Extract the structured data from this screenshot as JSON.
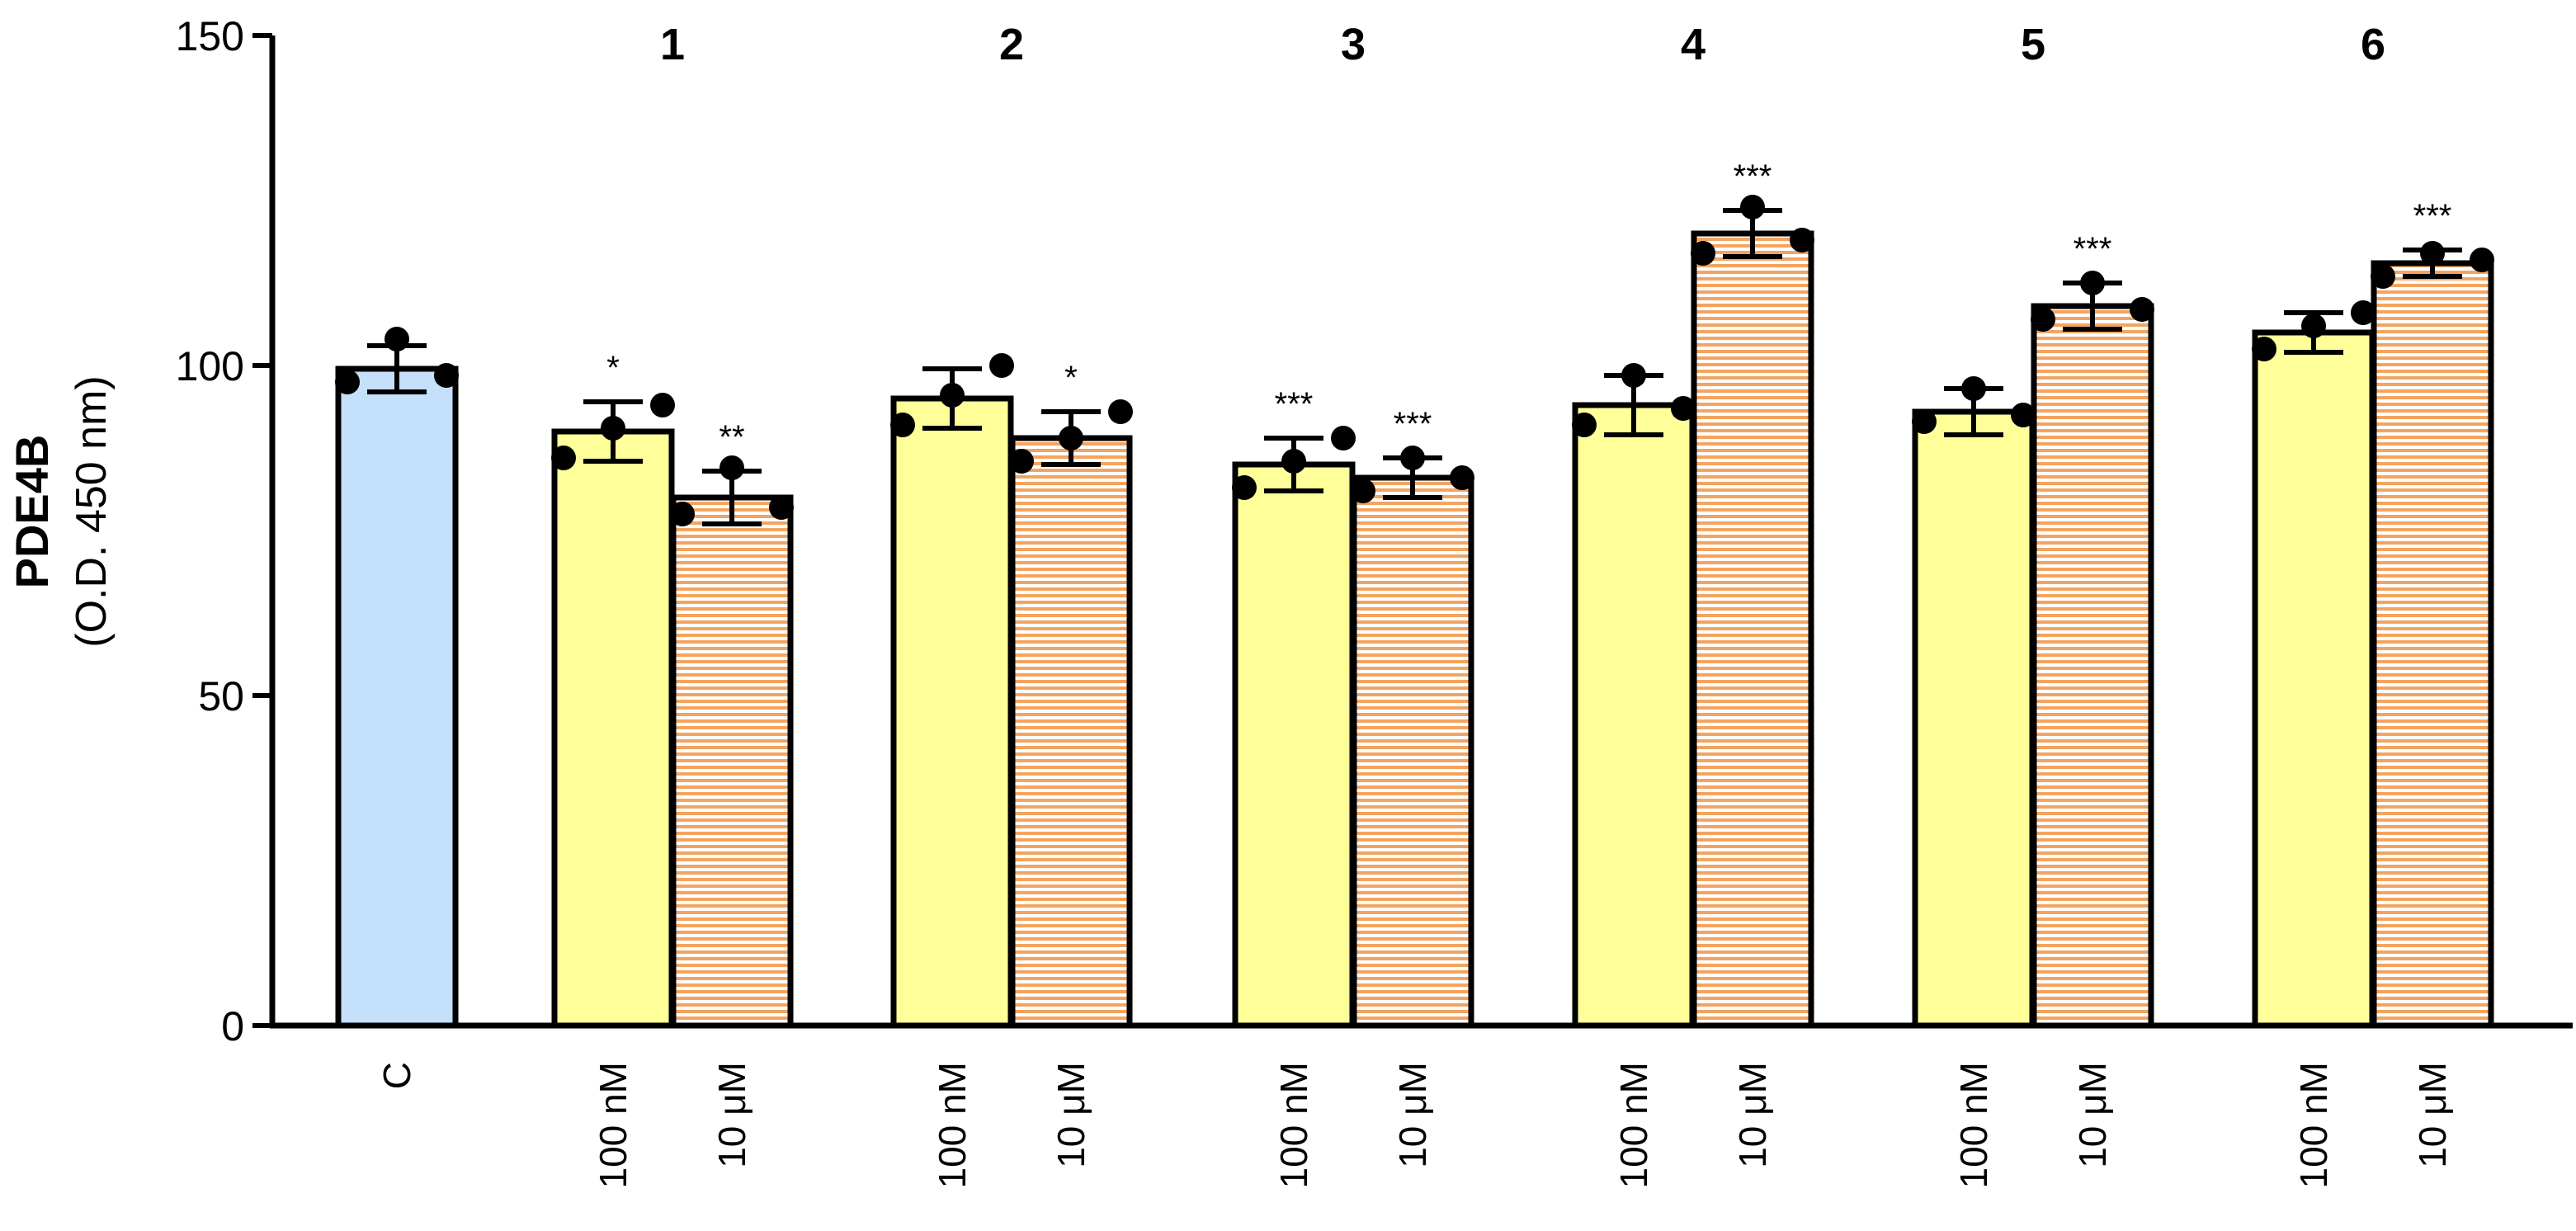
{
  "chart_data": {
    "type": "bar",
    "ylabel": "PDE4B",
    "ylabel_unit": "(O.D. 450 nm)",
    "ylim": [
      0,
      150
    ],
    "yticks": [
      0,
      50,
      100,
      150
    ],
    "grid": false,
    "colors": {
      "control": "#c5e0fb",
      "low": "#ffff99",
      "high_stripe": "#f4a460",
      "high_bg": "#ffffff",
      "outline": "#000000"
    },
    "groups": [
      {
        "label": "",
        "bars": [
          {
            "category": "C",
            "kind": "control",
            "value": 99.5,
            "error": 3.5,
            "points": [
              97.5,
              104,
              98.5
            ],
            "sig": ""
          }
        ]
      },
      {
        "label": "1",
        "bars": [
          {
            "category": "100 nM",
            "kind": "low",
            "value": 90,
            "error": 4.5,
            "points": [
              86,
              90.5,
              94
            ],
            "sig": "*"
          },
          {
            "category": "10 μM",
            "kind": "high",
            "value": 80,
            "error": 4,
            "points": [
              77.5,
              84.5,
              78.5
            ],
            "sig": "**"
          }
        ]
      },
      {
        "label": "2",
        "bars": [
          {
            "category": "100 nM",
            "kind": "low",
            "value": 95,
            "error": 4.5,
            "points": [
              91,
              95.5,
              100
            ],
            "sig": ""
          },
          {
            "category": "10 μM",
            "kind": "high",
            "value": 89,
            "error": 4,
            "points": [
              85.5,
              89,
              93
            ],
            "sig": "*"
          }
        ]
      },
      {
        "label": "3",
        "bars": [
          {
            "category": "100 nM",
            "kind": "low",
            "value": 85,
            "error": 4,
            "points": [
              81.5,
              85.5,
              89
            ],
            "sig": "***"
          },
          {
            "category": "10 μM",
            "kind": "high",
            "value": 83,
            "error": 3,
            "points": [
              81,
              86,
              83
            ],
            "sig": "***"
          }
        ]
      },
      {
        "label": "4",
        "bars": [
          {
            "category": "100 nM",
            "kind": "low",
            "value": 94,
            "error": 4.5,
            "points": [
              91,
              98.5,
              93.5
            ],
            "sig": ""
          },
          {
            "category": "10 μM",
            "kind": "high",
            "value": 120,
            "error": 3.5,
            "points": [
              117,
              124,
              119
            ],
            "sig": "***"
          }
        ]
      },
      {
        "label": "5",
        "bars": [
          {
            "category": "100 nM",
            "kind": "low",
            "value": 93,
            "error": 3.5,
            "points": [
              91.5,
              96.5,
              92.5
            ],
            "sig": ""
          },
          {
            "category": "10 μM",
            "kind": "high",
            "value": 109,
            "error": 3.5,
            "points": [
              107,
              112.5,
              108.5
            ],
            "sig": "***"
          }
        ]
      },
      {
        "label": "6",
        "bars": [
          {
            "category": "100 nM",
            "kind": "low",
            "value": 105,
            "error": 3,
            "points": [
              102.5,
              106,
              108
            ],
            "sig": ""
          },
          {
            "category": "10 μM",
            "kind": "high",
            "value": 115.5,
            "error": 2,
            "points": [
              113.5,
              117,
              116
            ],
            "sig": "***"
          }
        ]
      }
    ]
  }
}
